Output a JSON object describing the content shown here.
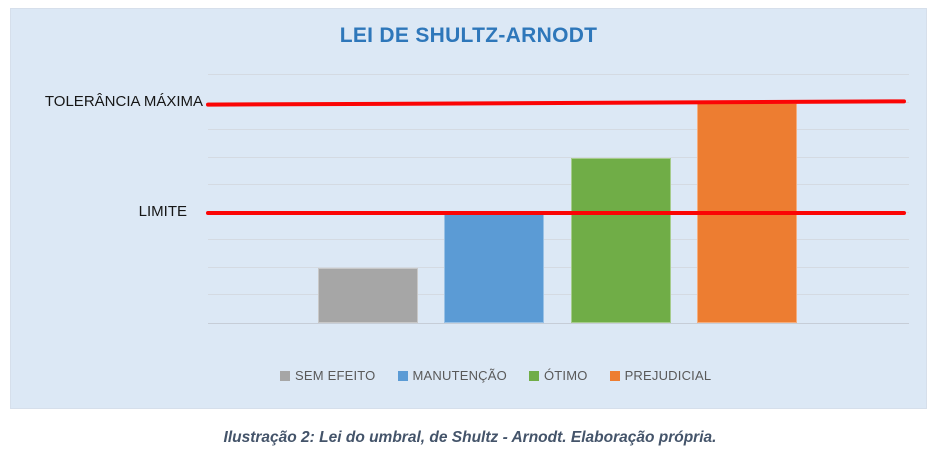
{
  "chart": {
    "background_color": "#dce8f5",
    "title_color": "#2e77ba"
  },
  "caption": "Ilustração 2: Lei do umbral, de Shultz - Arnodt. Elaboração própria.",
  "chart_data": {
    "type": "bar",
    "title": "LEI DE SHULTZ-ARNODT",
    "categories": [
      "SEM EFEITO",
      "MANUTENÇÃO",
      "ÓTIMO",
      "PREJUDICIAL"
    ],
    "values": [
      2,
      4,
      6,
      8
    ],
    "colors": [
      "#a6a6a6",
      "#5b9bd5",
      "#70ad47",
      "#ed7d31"
    ],
    "xlabel": "",
    "ylabel": "",
    "ylim": [
      0,
      9
    ],
    "grid": true,
    "legend_position": "bottom",
    "reference_lines": [
      {
        "label": "TOLERÂNCIA MÁXIMA",
        "value": 8,
        "color": "#fb0505"
      },
      {
        "label": "LIMITE",
        "value": 4,
        "color": "#fb0505"
      }
    ]
  }
}
